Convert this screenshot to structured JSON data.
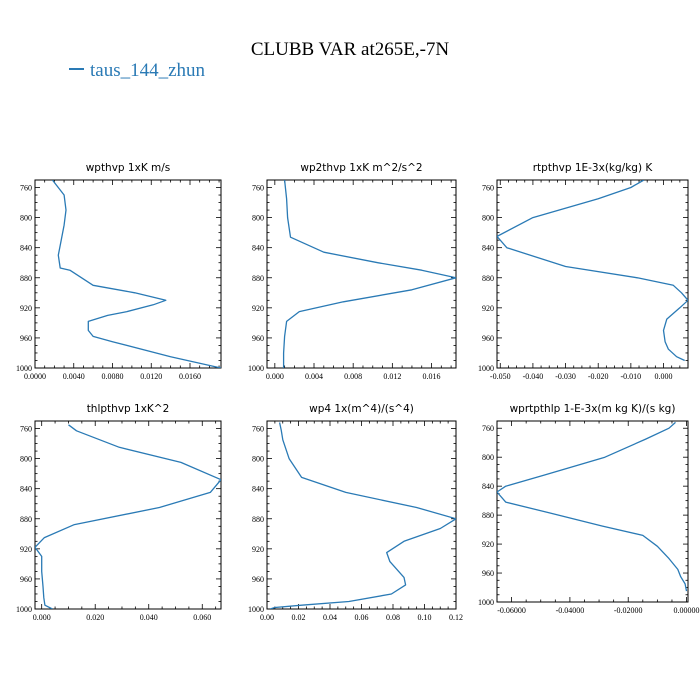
{
  "figure": {
    "title": "CLUBB VAR at265E,-7N",
    "legend": [
      {
        "name": "taus_144_zhun",
        "color": "#2a7ab5"
      }
    ]
  },
  "chart_data": [
    {
      "type": "line",
      "title": "wpthvp   1xK m/s",
      "xlim": [
        0,
        0.0192
      ],
      "ylim": [
        1000,
        750
      ],
      "xticks": [
        0,
        0.004,
        0.008,
        0.012,
        0.016
      ],
      "xtick_labels": [
        "0.0000",
        "0.0040",
        "0.0080",
        "0.0120",
        "0.0160"
      ],
      "yticks": [
        760,
        800,
        840,
        880,
        920,
        960,
        1000
      ],
      "series": [
        {
          "name": "taus_144_zhun",
          "color": "#2a7ab5",
          "x": [
            0.0018,
            0.003,
            0.0032,
            0.003,
            0.0027,
            0.0024,
            0.0026,
            0.0036,
            0.006,
            0.0103,
            0.0135,
            0.0122,
            0.0095,
            0.0075,
            0.0055,
            0.0055,
            0.006,
            0.008,
            0.014,
            0.0192
          ],
          "y": [
            750,
            770,
            790,
            810,
            830,
            850,
            867,
            870,
            890,
            900,
            910,
            916,
            925,
            930,
            938,
            950,
            958,
            965,
            985,
            1000
          ]
        }
      ]
    },
    {
      "type": "line",
      "title": "wp2thvp   1xK m^2/s^2",
      "xlim": [
        -0.0008,
        0.0185
      ],
      "ylim": [
        1000,
        750
      ],
      "xticks": [
        0,
        0.004,
        0.008,
        0.012,
        0.016
      ],
      "xtick_labels": [
        "0.000",
        "0.004",
        "0.008",
        "0.012",
        "0.016"
      ],
      "yticks": [
        760,
        800,
        840,
        880,
        920,
        960,
        1000
      ],
      "series": [
        {
          "name": "taus_144_zhun",
          "color": "#2a7ab5",
          "x": [
            0.001,
            0.0012,
            0.0013,
            0.0016,
            0.005,
            0.0105,
            0.015,
            0.0185,
            0.014,
            0.007,
            0.0025,
            0.0012,
            0.001,
            0.0009,
            0.0009
          ],
          "y": [
            750,
            775,
            800,
            826,
            846,
            860,
            870,
            880,
            896,
            912,
            925,
            938,
            958,
            980,
            1000
          ]
        }
      ]
    },
    {
      "type": "line",
      "title": "rtpthvp   1E-3x(kg/kg) K",
      "xlim": [
        -0.051,
        0.0075
      ],
      "ylim": [
        1000,
        750
      ],
      "xticks": [
        -0.05,
        -0.04,
        -0.03,
        -0.02,
        -0.01,
        0
      ],
      "xtick_labels": [
        "-0.050",
        "-0.040",
        "-0.030",
        "-0.020",
        "-0.010",
        "0.000"
      ],
      "yticks": [
        760,
        800,
        840,
        880,
        920,
        960,
        1000
      ],
      "series": [
        {
          "name": "taus_144_zhun",
          "color": "#2a7ab5",
          "x": [
            -0.006,
            -0.01,
            -0.02,
            -0.04,
            -0.051,
            -0.048,
            -0.03,
            -0.008,
            0.003,
            0.0055,
            0.0075,
            0.005,
            0.001,
            0.0,
            0.0005,
            0.0015,
            0.004,
            0.0065
          ],
          "y": [
            750,
            760,
            775,
            800,
            825,
            840,
            865,
            880,
            890,
            900,
            910,
            920,
            935,
            950,
            965,
            975,
            985,
            990
          ]
        }
      ]
    },
    {
      "type": "line",
      "title": "thlpthvp   1xK^2",
      "xlim": [
        -0.0025,
        0.067
      ],
      "ylim": [
        1000,
        750
      ],
      "xticks": [
        0,
        0.02,
        0.04,
        0.06
      ],
      "xtick_labels": [
        "0.000",
        "0.020",
        "0.040",
        "0.060"
      ],
      "yticks": [
        760,
        800,
        840,
        880,
        920,
        960,
        1000
      ],
      "series": [
        {
          "name": "taus_144_zhun",
          "color": "#2a7ab5",
          "x": [
            0.01,
            0.013,
            0.029,
            0.052,
            0.067,
            0.063,
            0.044,
            0.012,
            0.001,
            -0.0025,
            0.0,
            0.0,
            0.0005,
            0.0008,
            0.0012,
            0.004
          ],
          "y": [
            755,
            763,
            785,
            805,
            828,
            845,
            865,
            888,
            905,
            918,
            930,
            950,
            970,
            985,
            995,
            1000
          ]
        }
      ]
    },
    {
      "type": "line",
      "title": "wp4   1x(m^4)/(s^4)",
      "xlim": [
        0,
        0.12
      ],
      "ylim": [
        1000,
        750
      ],
      "xticks": [
        0,
        0.02,
        0.04,
        0.06,
        0.08,
        0.1,
        0.12
      ],
      "xtick_labels": [
        "0.00",
        "0.02",
        "0.04",
        "0.06",
        "0.08",
        "0.10",
        "0.12"
      ],
      "yticks": [
        760,
        800,
        840,
        880,
        920,
        960,
        1000
      ],
      "series": [
        {
          "name": "taus_144_zhun",
          "color": "#2a7ab5",
          "x": [
            0.008,
            0.009,
            0.01,
            0.014,
            0.022,
            0.05,
            0.095,
            0.12,
            0.11,
            0.087,
            0.076,
            0.078,
            0.087,
            0.088,
            0.079,
            0.052,
            0.022,
            0.005,
            0.002
          ],
          "y": [
            752,
            762,
            775,
            800,
            825,
            845,
            865,
            880,
            893,
            910,
            925,
            937,
            958,
            968,
            980,
            990,
            995,
            998,
            1000
          ]
        }
      ]
    },
    {
      "type": "line",
      "title": "wprtpthlp   1-E-3x(m kg K)/(s kg)",
      "xlim": [
        -0.065,
        0.0005
      ],
      "ylim": [
        1000,
        750
      ],
      "xticks": [
        -0.06,
        -0.04,
        -0.02,
        0
      ],
      "xtick_labels": [
        "-0.06000",
        "-0.04000",
        "-0.02000",
        "0.00000"
      ],
      "yticks": [
        760,
        800,
        840,
        880,
        920,
        960,
        1000
      ],
      "series": [
        {
          "name": "taus_144_zhun",
          "color": "#2a7ab5",
          "x": [
            -0.0038,
            -0.006,
            -0.014,
            -0.028,
            -0.049,
            -0.062,
            -0.065,
            -0.062,
            -0.047,
            -0.029,
            -0.015,
            -0.01,
            -0.006,
            -0.003,
            -0.002,
            -0.0005,
            0.0
          ],
          "y": [
            752,
            760,
            775,
            800,
            825,
            840,
            848,
            862,
            877,
            895,
            908,
            923,
            940,
            955,
            965,
            975,
            985
          ]
        }
      ]
    }
  ]
}
